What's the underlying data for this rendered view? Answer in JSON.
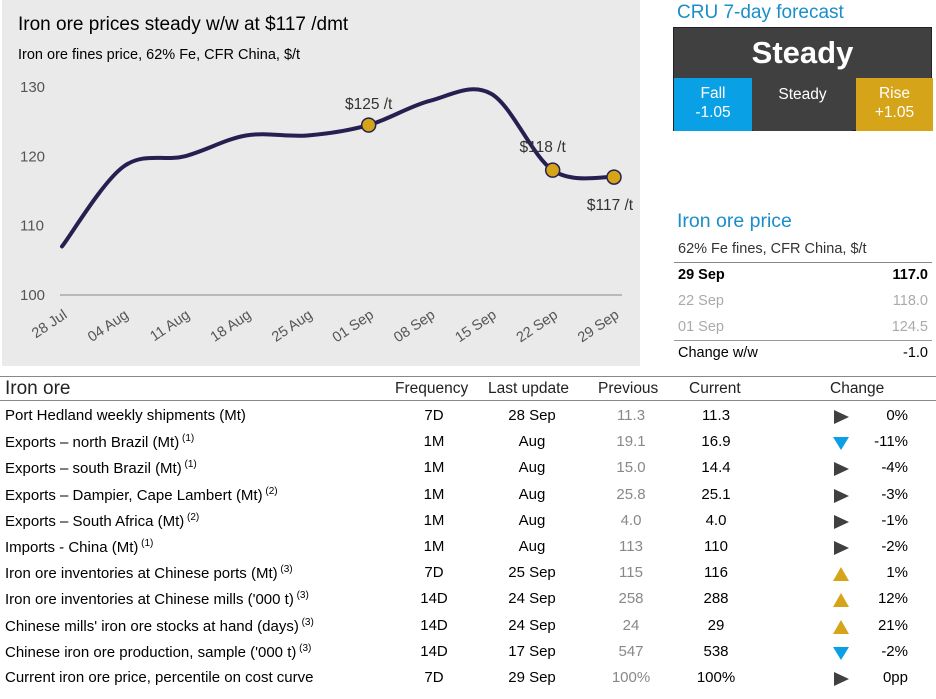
{
  "chart": {
    "title": "Iron ore prices steady w/w at $117 /dmt",
    "subtitle": "Iron ore fines price, 62% Fe, CFR China, $/t"
  },
  "chart_data": {
    "type": "line",
    "title": "Iron ore prices steady w/w at $117 /dmt",
    "subtitle": "Iron ore fines price, 62% Fe, CFR China, $/t",
    "categories": [
      "28 Jul",
      "04 Aug",
      "11 Aug",
      "18 Aug",
      "25 Aug",
      "01 Sep",
      "08 Sep",
      "15 Sep",
      "22 Sep",
      "29 Sep"
    ],
    "x_positions": [
      0,
      1,
      2,
      3,
      4,
      5,
      6,
      7,
      8,
      9
    ],
    "series": [
      {
        "values": [
          107,
          118.5,
          120,
          123,
          123,
          124.5,
          128,
          129,
          118,
          117
        ],
        "color": "#252050"
      }
    ],
    "highlighted_points": [
      {
        "index": 5,
        "value": 124.5,
        "label": "$125 /t"
      },
      {
        "index": 8,
        "value": 118,
        "label": "$118 /t"
      },
      {
        "index": 9,
        "value": 117,
        "label": "$117 /t"
      }
    ],
    "highlight_color": "#d6a419",
    "yticks": [
      100,
      110,
      120,
      130
    ],
    "ylim": [
      100,
      131
    ],
    "grid": false
  },
  "forecast": {
    "title": "CRU 7-day forecast",
    "main": "Steady",
    "fall_label": "Fall",
    "fall_value": "-1.05",
    "steady_label": "Steady",
    "rise_label": "Rise",
    "rise_value": "+1.05",
    "colors": {
      "fall": "#0aa0e6",
      "steady": "#404040",
      "rise": "#d6a419"
    }
  },
  "price_box": {
    "title": "Iron ore price",
    "subtitle": "62% Fe fines, CFR China, $/t",
    "rows": [
      {
        "date": "29 Sep",
        "value": "117.0"
      },
      {
        "date": "22 Sep",
        "value": "118.0"
      },
      {
        "date": "01 Sep",
        "value": "124.5"
      }
    ],
    "change_label": "Change w/w",
    "change_value": "-1.0"
  },
  "table": {
    "headers": {
      "name": "Iron ore",
      "frequency": "Frequency",
      "last_update": "Last update",
      "previous": "Previous",
      "current": "Current",
      "change": "Change"
    },
    "rows": [
      {
        "name": "Port Hedland weekly shipments (Mt)",
        "note": "",
        "freq": "7D",
        "last": "28 Sep",
        "prev": "11.3",
        "curr": "11.3",
        "dir": "flat",
        "chg": "0%"
      },
      {
        "name": "Exports – north Brazil (Mt)",
        "note": "(1)",
        "freq": "1M",
        "last": "Aug",
        "prev": "19.1",
        "curr": "16.9",
        "dir": "down",
        "chg": "-11%"
      },
      {
        "name": "Exports – south Brazil (Mt)",
        "note": "(1)",
        "freq": "1M",
        "last": "Aug",
        "prev": "15.0",
        "curr": "14.4",
        "dir": "flat",
        "chg": "-4%"
      },
      {
        "name": "Exports – Dampier, Cape Lambert (Mt)",
        "note": "(2)",
        "freq": "1M",
        "last": "Aug",
        "prev": "25.8",
        "curr": "25.1",
        "dir": "flat",
        "chg": "-3%"
      },
      {
        "name": "Exports – South Africa (Mt)",
        "note": "(2)",
        "freq": "1M",
        "last": "Aug",
        "prev": "4.0",
        "curr": "4.0",
        "dir": "flat",
        "chg": "-1%"
      },
      {
        "name": "Imports - China (Mt)",
        "note": "(1)",
        "freq": "1M",
        "last": "Aug",
        "prev": "113",
        "curr": "110",
        "dir": "flat",
        "chg": "-2%"
      },
      {
        "name": "Iron ore inventories at Chinese ports (Mt)",
        "note": "(3)",
        "freq": "7D",
        "last": "25 Sep",
        "prev": "115",
        "curr": "116",
        "dir": "up",
        "chg": "1%"
      },
      {
        "name": "Iron ore inventories at Chinese mills ('000 t)",
        "note": "(3)",
        "freq": "14D",
        "last": "24 Sep",
        "prev": "258",
        "curr": "288",
        "dir": "up",
        "chg": "12%"
      },
      {
        "name": "Chinese mills' iron ore stocks at hand (days)",
        "note": "(3)",
        "freq": "14D",
        "last": "24 Sep",
        "prev": "24",
        "curr": "29",
        "dir": "up",
        "chg": "21%"
      },
      {
        "name": "Chinese iron ore production, sample ('000 t)",
        "note": "(3)",
        "freq": "14D",
        "last": "17 Sep",
        "prev": "547",
        "curr": "538",
        "dir": "down",
        "chg": "-2%"
      },
      {
        "name": "Current iron ore price, percentile on cost curve",
        "note": "",
        "freq": "7D",
        "last": "29 Sep",
        "prev": "100%",
        "curr": "100%",
        "dir": "flat",
        "chg": "0pp"
      }
    ],
    "arrow_colors": {
      "up": "#d6a419",
      "down": "#0aa0e6",
      "flat": "#404040"
    }
  }
}
